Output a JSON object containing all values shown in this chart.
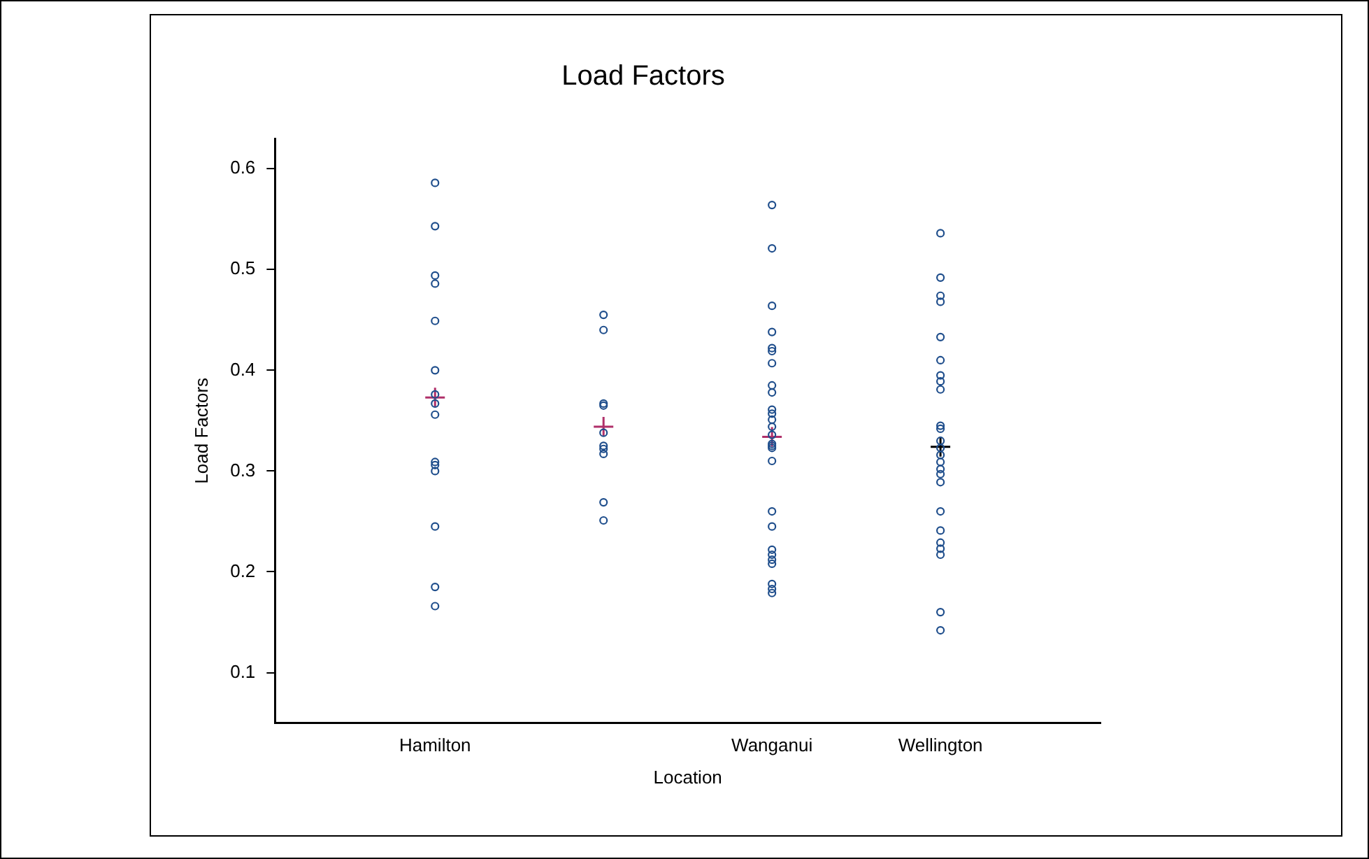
{
  "chart_data": {
    "type": "scatter",
    "title": "Load Factors",
    "xlabel": "Location",
    "ylabel": "Load Factors",
    "categories": [
      "Hamilton",
      null,
      "Wanganui",
      "Wellington"
    ],
    "ylim": [
      0.05,
      0.63
    ],
    "yticks": [
      0.1,
      0.2,
      0.3,
      0.4,
      0.5,
      0.6
    ],
    "grid": false,
    "legend": false,
    "series": [
      {
        "type": "scatter",
        "marker": "circle",
        "color": "#1f4e8c",
        "x": [
          "Hamilton",
          "Hamilton",
          "Hamilton",
          "Hamilton",
          "Hamilton",
          "Hamilton",
          "Hamilton",
          "Hamilton",
          "Hamilton",
          "Hamilton",
          "Hamilton",
          "Hamilton",
          "Hamilton",
          "Hamilton",
          "Hamilton",
          null,
          null,
          null,
          null,
          null,
          null,
          null,
          null,
          null,
          null,
          "Wanganui",
          "Wanganui",
          "Wanganui",
          "Wanganui",
          "Wanganui",
          "Wanganui",
          "Wanganui",
          "Wanganui",
          "Wanganui",
          "Wanganui",
          "Wanganui",
          "Wanganui",
          "Wanganui",
          "Wanganui",
          "Wanganui",
          "Wanganui",
          "Wanganui",
          "Wanganui",
          "Wanganui",
          "Wanganui",
          "Wanganui",
          "Wanganui",
          "Wanganui",
          "Wanganui",
          "Wanganui",
          "Wanganui",
          "Wanganui",
          "Wellington",
          "Wellington",
          "Wellington",
          "Wellington",
          "Wellington",
          "Wellington",
          "Wellington",
          "Wellington",
          "Wellington",
          "Wellington",
          "Wellington",
          "Wellington",
          "Wellington",
          "Wellington",
          "Wellington",
          "Wellington",
          "Wellington",
          "Wellington",
          "Wellington",
          "Wellington",
          "Wellington",
          "Wellington",
          "Wellington",
          "Wellington",
          "Wellington"
        ],
        "values": [
          0.586,
          0.543,
          0.494,
          0.486,
          0.449,
          0.4,
          0.376,
          0.367,
          0.356,
          0.309,
          0.306,
          0.3,
          0.245,
          0.185,
          0.166,
          0.455,
          0.44,
          0.367,
          0.365,
          0.338,
          0.325,
          0.322,
          0.317,
          0.269,
          0.251,
          0.564,
          0.521,
          0.464,
          0.438,
          0.422,
          0.419,
          0.407,
          0.385,
          0.378,
          0.361,
          0.357,
          0.351,
          0.344,
          0.336,
          0.327,
          0.325,
          0.323,
          0.31,
          0.26,
          0.245,
          0.222,
          0.217,
          0.212,
          0.208,
          0.188,
          0.183,
          0.179,
          0.536,
          0.492,
          0.474,
          0.468,
          0.433,
          0.41,
          0.395,
          0.389,
          0.381,
          0.345,
          0.342,
          0.33,
          0.323,
          0.316,
          0.309,
          0.302,
          0.297,
          0.289,
          0.26,
          0.241,
          0.229,
          0.223,
          0.217,
          0.16,
          0.142
        ]
      },
      {
        "type": "scatter",
        "marker": "cross",
        "x": [
          "Hamilton",
          null,
          "Wanganui",
          "Wellington"
        ],
        "colors": [
          "#b0306a",
          "#b0306a",
          "#b0306a",
          "#000000"
        ],
        "values": [
          0.373,
          0.344,
          0.334,
          0.324
        ]
      }
    ]
  }
}
